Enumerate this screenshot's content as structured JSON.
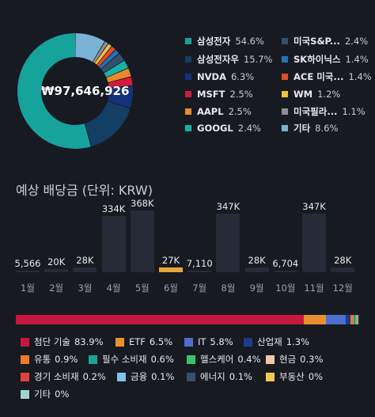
{
  "portfolio": {
    "total": "₩97,646,926",
    "holdings": [
      {
        "name": "삼성전자",
        "pct": "54.6%",
        "value": 54.6,
        "color": "#16a39b"
      },
      {
        "name": "삼성전자우",
        "pct": "15.7%",
        "value": 15.7,
        "color": "#123f63"
      },
      {
        "name": "NVDA",
        "pct": "6.3%",
        "value": 6.3,
        "color": "#16307a"
      },
      {
        "name": "MSFT",
        "pct": "2.5%",
        "value": 2.5,
        "color": "#d11a3a"
      },
      {
        "name": "AAPL",
        "pct": "2.5%",
        "value": 2.5,
        "color": "#e88a2a"
      },
      {
        "name": "GOOGL",
        "pct": "2.4%",
        "value": 2.4,
        "color": "#14b3a6"
      },
      {
        "name": "미국S&P...",
        "pct": "2.4%",
        "value": 2.4,
        "color": "#33506e"
      },
      {
        "name": "SK하이닉스",
        "pct": "1.4%",
        "value": 1.4,
        "color": "#1f73b8"
      },
      {
        "name": "ACE 미국...",
        "pct": "1.4%",
        "value": 1.4,
        "color": "#e34a26"
      },
      {
        "name": "WM",
        "pct": "1.2%",
        "value": 1.2,
        "color": "#f0c23a"
      },
      {
        "name": "미국필라...",
        "pct": "1.1%",
        "value": 1.1,
        "color": "#8a8f9a"
      },
      {
        "name": "기타",
        "pct": "8.6%",
        "value": 8.6,
        "color": "#7ab2d6"
      }
    ]
  },
  "dividends": {
    "title": "예상 배당금 (단위: KRW)",
    "months": [
      {
        "month": "1월",
        "label": "5,566",
        "value": 5566,
        "highlight": false
      },
      {
        "month": "2월",
        "label": "20K",
        "value": 20000,
        "highlight": false
      },
      {
        "month": "3월",
        "label": "28K",
        "value": 28000,
        "highlight": false
      },
      {
        "month": "4월",
        "label": "334K",
        "value": 334000,
        "highlight": false
      },
      {
        "month": "5월",
        "label": "368K",
        "value": 368000,
        "highlight": false
      },
      {
        "month": "6월",
        "label": "27K",
        "value": 27000,
        "highlight": true
      },
      {
        "month": "7월",
        "label": "7,110",
        "value": 7110,
        "highlight": false
      },
      {
        "month": "8월",
        "label": "347K",
        "value": 347000,
        "highlight": false
      },
      {
        "month": "9월",
        "label": "28K",
        "value": 28000,
        "highlight": false
      },
      {
        "month": "10월",
        "label": "6,704",
        "value": 6704,
        "highlight": false
      },
      {
        "month": "11월",
        "label": "347K",
        "value": 347000,
        "highlight": false
      },
      {
        "month": "12월",
        "label": "28K",
        "value": 28000,
        "highlight": false
      }
    ]
  },
  "sectors": [
    {
      "name": "첨단 기술",
      "pct": "83.9%",
      "value": 83.9,
      "color": "#c8173f"
    },
    {
      "name": "ETF",
      "pct": "6.5%",
      "value": 6.5,
      "color": "#e8902f"
    },
    {
      "name": "IT",
      "pct": "5.8%",
      "value": 5.8,
      "color": "#4f6fd0"
    },
    {
      "name": "산업재",
      "pct": "1.3%",
      "value": 1.3,
      "color": "#1d3a8c"
    },
    {
      "name": "유통",
      "pct": "0.9%",
      "value": 0.9,
      "color": "#f07a25"
    },
    {
      "name": "필수 소비재",
      "pct": "0.6%",
      "value": 0.6,
      "color": "#18a59a"
    },
    {
      "name": "헬스케어",
      "pct": "0.4%",
      "value": 0.4,
      "color": "#3ac26e"
    },
    {
      "name": "현금",
      "pct": "0.3%",
      "value": 0.3,
      "color": "#f2c7a5"
    },
    {
      "name": "경기 소비재",
      "pct": "0.2%",
      "value": 0.2,
      "color": "#e0423d"
    },
    {
      "name": "금융",
      "pct": "0.1%",
      "value": 0.1,
      "color": "#7fc3e8"
    },
    {
      "name": "에너지",
      "pct": "0.1%",
      "value": 0.1,
      "color": "#33506e"
    },
    {
      "name": "부동산",
      "pct": "0%",
      "value": 0,
      "color": "#f2c94c"
    },
    {
      "name": "기타",
      "pct": "0%",
      "value": 0,
      "color": "#9fd6d0"
    }
  ],
  "chart_data": {
    "type": "bar",
    "title": "예상 배당금 (단위: KRW)",
    "categories": [
      "1월",
      "2월",
      "3월",
      "4월",
      "5월",
      "6월",
      "7월",
      "8월",
      "9월",
      "10월",
      "11월",
      "12월"
    ],
    "values": [
      5566,
      20000,
      28000,
      334000,
      368000,
      27000,
      7110,
      347000,
      28000,
      6704,
      347000,
      28000
    ]
  }
}
